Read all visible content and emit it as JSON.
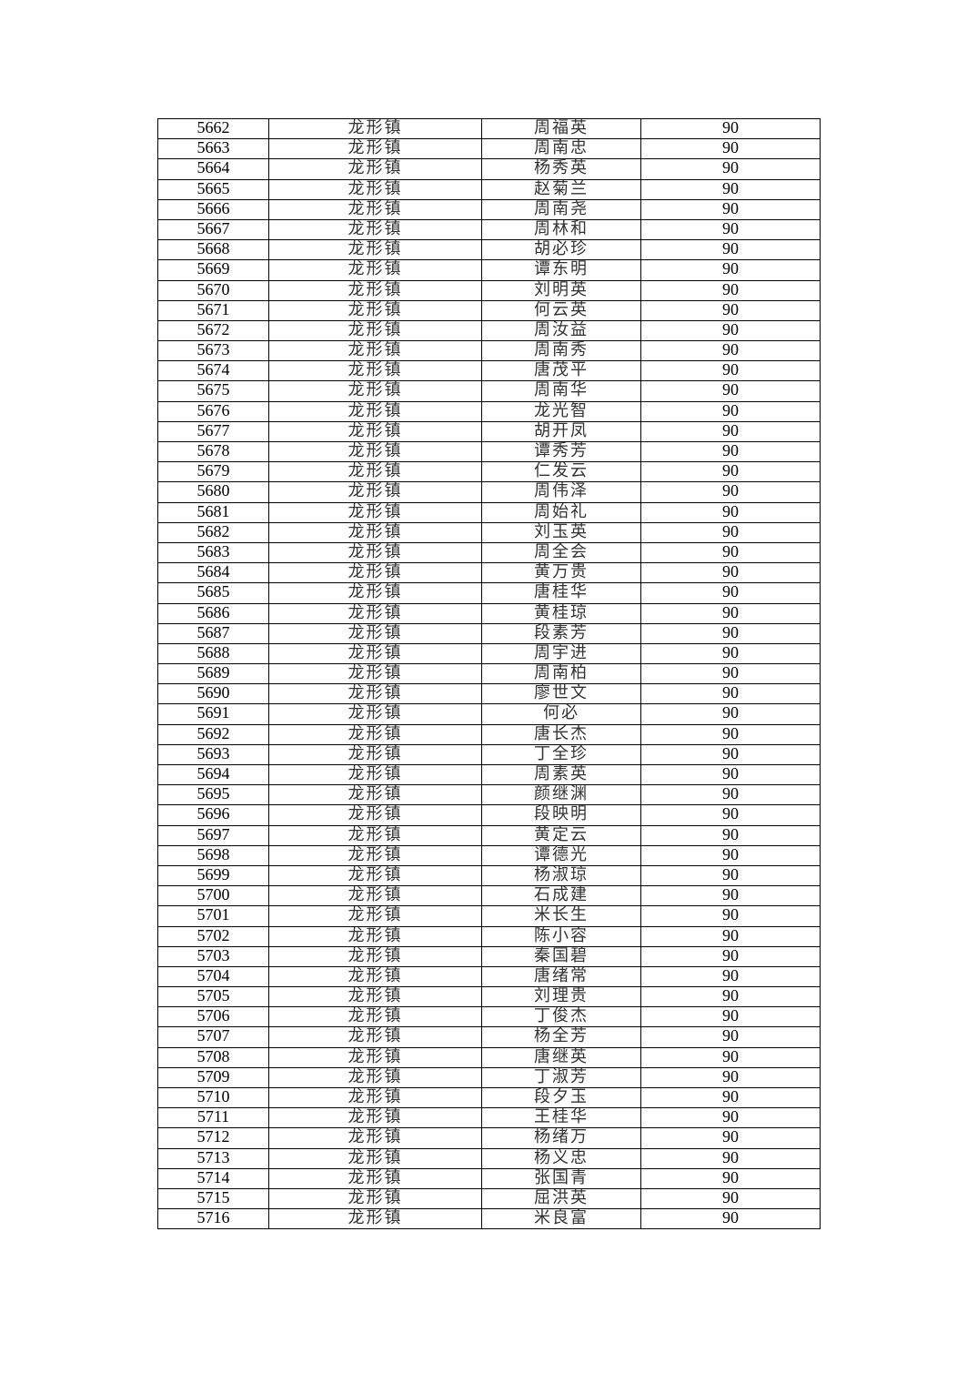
{
  "table": {
    "rows": [
      [
        "5662",
        "龙形镇",
        "周福英",
        "90"
      ],
      [
        "5663",
        "龙形镇",
        "周南忠",
        "90"
      ],
      [
        "5664",
        "龙形镇",
        "杨秀英",
        "90"
      ],
      [
        "5665",
        "龙形镇",
        "赵菊兰",
        "90"
      ],
      [
        "5666",
        "龙形镇",
        "周南尧",
        "90"
      ],
      [
        "5667",
        "龙形镇",
        "周林和",
        "90"
      ],
      [
        "5668",
        "龙形镇",
        "胡必珍",
        "90"
      ],
      [
        "5669",
        "龙形镇",
        "谭东明",
        "90"
      ],
      [
        "5670",
        "龙形镇",
        "刘明英",
        "90"
      ],
      [
        "5671",
        "龙形镇",
        "何云英",
        "90"
      ],
      [
        "5672",
        "龙形镇",
        "周汝益",
        "90"
      ],
      [
        "5673",
        "龙形镇",
        "周南秀",
        "90"
      ],
      [
        "5674",
        "龙形镇",
        "唐茂平",
        "90"
      ],
      [
        "5675",
        "龙形镇",
        "周南华",
        "90"
      ],
      [
        "5676",
        "龙形镇",
        "龙光智",
        "90"
      ],
      [
        "5677",
        "龙形镇",
        "胡开凤",
        "90"
      ],
      [
        "5678",
        "龙形镇",
        "谭秀芳",
        "90"
      ],
      [
        "5679",
        "龙形镇",
        "仁发云",
        "90"
      ],
      [
        "5680",
        "龙形镇",
        "周伟泽",
        "90"
      ],
      [
        "5681",
        "龙形镇",
        "周始礼",
        "90"
      ],
      [
        "5682",
        "龙形镇",
        "刘玉英",
        "90"
      ],
      [
        "5683",
        "龙形镇",
        "周全会",
        "90"
      ],
      [
        "5684",
        "龙形镇",
        "黄万贵",
        "90"
      ],
      [
        "5685",
        "龙形镇",
        "唐桂华",
        "90"
      ],
      [
        "5686",
        "龙形镇",
        "黄桂琼",
        "90"
      ],
      [
        "5687",
        "龙形镇",
        "段素芳",
        "90"
      ],
      [
        "5688",
        "龙形镇",
        "周宇进",
        "90"
      ],
      [
        "5689",
        "龙形镇",
        "周南柏",
        "90"
      ],
      [
        "5690",
        "龙形镇",
        "廖世文",
        "90"
      ],
      [
        "5691",
        "龙形镇",
        "何必",
        "90"
      ],
      [
        "5692",
        "龙形镇",
        "唐长杰",
        "90"
      ],
      [
        "5693",
        "龙形镇",
        "丁全珍",
        "90"
      ],
      [
        "5694",
        "龙形镇",
        "周素英",
        "90"
      ],
      [
        "5695",
        "龙形镇",
        "颜继渊",
        "90"
      ],
      [
        "5696",
        "龙形镇",
        "段映明",
        "90"
      ],
      [
        "5697",
        "龙形镇",
        "黄定云",
        "90"
      ],
      [
        "5698",
        "龙形镇",
        "谭德光",
        "90"
      ],
      [
        "5699",
        "龙形镇",
        "杨淑琼",
        "90"
      ],
      [
        "5700",
        "龙形镇",
        "石成建",
        "90"
      ],
      [
        "5701",
        "龙形镇",
        "米长生",
        "90"
      ],
      [
        "5702",
        "龙形镇",
        "陈小容",
        "90"
      ],
      [
        "5703",
        "龙形镇",
        "秦国碧",
        "90"
      ],
      [
        "5704",
        "龙形镇",
        "唐绪常",
        "90"
      ],
      [
        "5705",
        "龙形镇",
        "刘理贵",
        "90"
      ],
      [
        "5706",
        "龙形镇",
        "丁俊杰",
        "90"
      ],
      [
        "5707",
        "龙形镇",
        "杨全芳",
        "90"
      ],
      [
        "5708",
        "龙形镇",
        "唐继英",
        "90"
      ],
      [
        "5709",
        "龙形镇",
        "丁淑芳",
        "90"
      ],
      [
        "5710",
        "龙形镇",
        "段夕玉",
        "90"
      ],
      [
        "5711",
        "龙形镇",
        "王桂华",
        "90"
      ],
      [
        "5712",
        "龙形镇",
        "杨绪万",
        "90"
      ],
      [
        "5713",
        "龙形镇",
        "杨义忠",
        "90"
      ],
      [
        "5714",
        "龙形镇",
        "张国青",
        "90"
      ],
      [
        "5715",
        "龙形镇",
        "屈洪英",
        "90"
      ],
      [
        "5716",
        "龙形镇",
        "米良富",
        "90"
      ]
    ]
  }
}
